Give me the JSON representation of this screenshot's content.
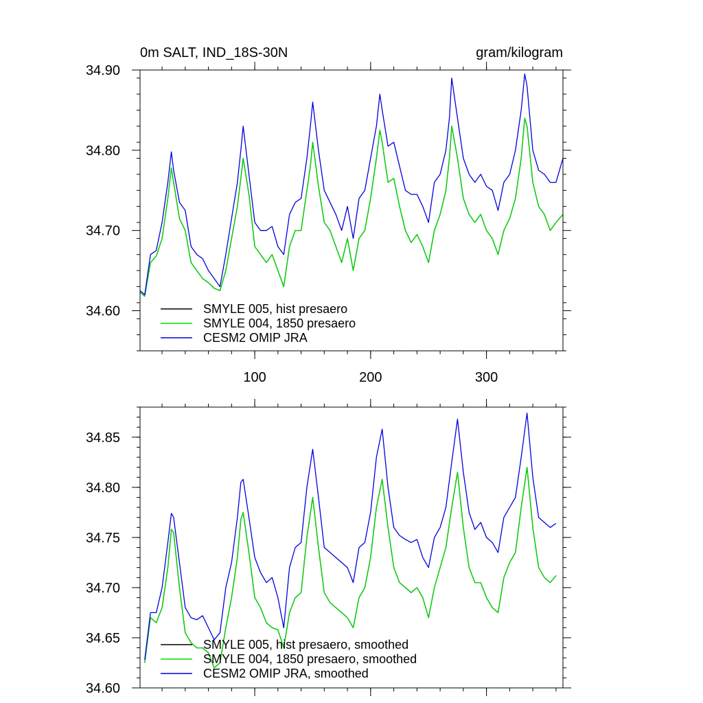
{
  "chart_data": [
    {
      "type": "line",
      "title_left": "0m SALT, IND_18S-30N",
      "title_right": "gram/kilogram",
      "xlabel": "",
      "ylabel": "",
      "xlim": [
        1,
        366
      ],
      "ylim": [
        34.55,
        34.9
      ],
      "x_ticks": [
        100,
        200,
        300
      ],
      "x_tick_labels": [
        "100",
        "200",
        "300"
      ],
      "y_ticks": [
        34.6,
        34.7,
        34.8,
        34.9
      ],
      "y_tick_labels": [
        "34.60",
        "34.70",
        "34.80",
        "34.90"
      ],
      "grid": false,
      "legend_position": "bottom-left",
      "series": [
        {
          "name": "SMYLE 005, hist presaero",
          "color": "#000000",
          "x": [
            1,
            5,
            10,
            15,
            20,
            25,
            28,
            30,
            35,
            40,
            45,
            50,
            55,
            60,
            65,
            70,
            75,
            80,
            85,
            88,
            90,
            95,
            100,
            105,
            110,
            115,
            120,
            125,
            130,
            135,
            140,
            145,
            148,
            150,
            155,
            160,
            165,
            170,
            175,
            180,
            185,
            190,
            195,
            200,
            205,
            208,
            210,
            215,
            220,
            225,
            230,
            235,
            240,
            245,
            250,
            255,
            260,
            265,
            268,
            270,
            275,
            280,
            285,
            290,
            295,
            300,
            305,
            310,
            315,
            320,
            325,
            330,
            333,
            335,
            340,
            345,
            350,
            355,
            360,
            366
          ],
          "values": [
            34.623,
            34.618,
            34.66,
            34.668,
            34.69,
            34.74,
            34.778,
            34.76,
            34.715,
            34.7,
            34.66,
            34.65,
            34.64,
            34.635,
            34.628,
            34.625,
            34.65,
            34.69,
            34.73,
            34.765,
            34.79,
            34.745,
            34.68,
            34.67,
            34.66,
            34.67,
            34.65,
            34.63,
            34.68,
            34.7,
            34.7,
            34.75,
            34.78,
            34.81,
            34.755,
            34.71,
            34.7,
            34.68,
            34.66,
            34.69,
            34.65,
            34.69,
            34.7,
            34.74,
            34.79,
            34.825,
            34.81,
            34.76,
            34.765,
            34.73,
            34.7,
            34.685,
            34.695,
            34.68,
            34.66,
            34.7,
            34.72,
            34.75,
            34.79,
            34.83,
            34.79,
            34.74,
            34.72,
            34.71,
            34.72,
            34.7,
            34.69,
            34.67,
            34.7,
            34.715,
            34.74,
            34.79,
            34.84,
            34.83,
            34.76,
            34.73,
            34.72,
            34.7,
            34.71,
            34.72
          ]
        },
        {
          "name": "SMYLE 004, 1850 presaero",
          "color": "#00dd00",
          "x": [
            1,
            5,
            10,
            15,
            20,
            25,
            28,
            30,
            35,
            40,
            45,
            50,
            55,
            60,
            65,
            70,
            75,
            80,
            85,
            88,
            90,
            95,
            100,
            105,
            110,
            115,
            120,
            125,
            130,
            135,
            140,
            145,
            148,
            150,
            155,
            160,
            165,
            170,
            175,
            180,
            185,
            190,
            195,
            200,
            205,
            208,
            210,
            215,
            220,
            225,
            230,
            235,
            240,
            245,
            250,
            255,
            260,
            265,
            268,
            270,
            275,
            280,
            285,
            290,
            295,
            300,
            305,
            310,
            315,
            320,
            325,
            330,
            333,
            335,
            340,
            345,
            350,
            355,
            360,
            366
          ],
          "values": [
            34.623,
            34.618,
            34.66,
            34.668,
            34.69,
            34.74,
            34.778,
            34.76,
            34.715,
            34.7,
            34.66,
            34.65,
            34.64,
            34.635,
            34.628,
            34.625,
            34.65,
            34.69,
            34.73,
            34.765,
            34.79,
            34.745,
            34.68,
            34.67,
            34.66,
            34.67,
            34.65,
            34.63,
            34.68,
            34.7,
            34.7,
            34.75,
            34.78,
            34.81,
            34.755,
            34.71,
            34.7,
            34.68,
            34.66,
            34.69,
            34.65,
            34.69,
            34.7,
            34.74,
            34.79,
            34.825,
            34.81,
            34.76,
            34.765,
            34.73,
            34.7,
            34.685,
            34.695,
            34.68,
            34.66,
            34.7,
            34.72,
            34.75,
            34.79,
            34.83,
            34.79,
            34.74,
            34.72,
            34.71,
            34.72,
            34.7,
            34.69,
            34.67,
            34.7,
            34.715,
            34.74,
            34.79,
            34.84,
            34.83,
            34.76,
            34.73,
            34.72,
            34.7,
            34.71,
            34.72
          ]
        },
        {
          "name": "CESM2 OMIP JRA",
          "color": "#0000dd",
          "x": [
            1,
            5,
            10,
            15,
            20,
            25,
            28,
            30,
            35,
            40,
            45,
            50,
            55,
            60,
            65,
            70,
            75,
            80,
            85,
            88,
            90,
            95,
            100,
            105,
            110,
            115,
            120,
            125,
            130,
            135,
            140,
            145,
            148,
            150,
            155,
            160,
            165,
            170,
            175,
            180,
            185,
            190,
            195,
            200,
            205,
            208,
            210,
            215,
            220,
            225,
            230,
            235,
            240,
            245,
            250,
            255,
            260,
            265,
            268,
            270,
            275,
            280,
            285,
            290,
            295,
            300,
            305,
            310,
            315,
            320,
            325,
            330,
            333,
            335,
            340,
            345,
            350,
            355,
            360,
            366
          ],
          "values": [
            34.625,
            34.62,
            34.67,
            34.675,
            34.71,
            34.76,
            34.798,
            34.775,
            34.735,
            34.725,
            34.68,
            34.67,
            34.665,
            34.65,
            34.64,
            34.63,
            34.67,
            34.715,
            34.76,
            34.8,
            34.83,
            34.77,
            34.71,
            34.7,
            34.7,
            34.705,
            34.68,
            34.67,
            34.72,
            34.735,
            34.74,
            34.79,
            34.83,
            34.86,
            34.8,
            34.75,
            34.735,
            34.72,
            34.7,
            34.73,
            34.69,
            34.74,
            34.75,
            34.79,
            34.83,
            34.87,
            34.85,
            34.805,
            34.81,
            34.78,
            34.75,
            34.745,
            34.745,
            34.73,
            34.71,
            34.76,
            34.77,
            34.8,
            34.84,
            34.89,
            34.84,
            34.79,
            34.77,
            34.76,
            34.77,
            34.755,
            34.75,
            34.725,
            34.76,
            34.77,
            34.8,
            34.85,
            34.895,
            34.88,
            34.8,
            34.775,
            34.77,
            34.76,
            34.76,
            34.79
          ]
        }
      ]
    },
    {
      "type": "line",
      "title_left": "",
      "title_right": "",
      "xlabel": "",
      "ylabel": "",
      "xlim": [
        1,
        366
      ],
      "ylim": [
        34.6,
        34.88
      ],
      "x_ticks": [
        100,
        200,
        300
      ],
      "x_tick_labels": [
        "",
        "",
        ""
      ],
      "y_ticks": [
        34.6,
        34.65,
        34.7,
        34.75,
        34.8,
        34.85
      ],
      "y_tick_labels": [
        "34.60",
        "34.65",
        "34.70",
        "34.75",
        "34.80",
        "34.85"
      ],
      "grid": false,
      "legend_position": "bottom-left",
      "series": [
        {
          "name": "SMYLE 005, hist presaero, smoothed",
          "color": "#000000",
          "x": [
            5,
            10,
            15,
            20,
            25,
            28,
            30,
            35,
            40,
            45,
            50,
            55,
            60,
            65,
            70,
            75,
            80,
            85,
            88,
            90,
            95,
            100,
            105,
            110,
            115,
            120,
            125,
            130,
            135,
            140,
            145,
            150,
            155,
            160,
            165,
            170,
            175,
            180,
            185,
            190,
            195,
            200,
            205,
            210,
            215,
            220,
            225,
            230,
            235,
            240,
            245,
            250,
            255,
            260,
            265,
            270,
            275,
            280,
            285,
            290,
            295,
            300,
            305,
            310,
            315,
            320,
            325,
            330,
            335,
            340,
            345,
            350,
            355,
            360
          ],
          "values": [
            34.625,
            34.67,
            34.665,
            34.68,
            34.72,
            34.758,
            34.755,
            34.7,
            34.655,
            34.645,
            34.64,
            34.64,
            34.635,
            34.62,
            34.625,
            34.66,
            34.69,
            34.73,
            34.768,
            34.775,
            34.735,
            34.69,
            34.68,
            34.665,
            34.66,
            34.658,
            34.64,
            34.675,
            34.69,
            34.695,
            34.75,
            34.79,
            34.74,
            34.695,
            34.685,
            34.68,
            34.675,
            34.67,
            34.66,
            34.69,
            34.7,
            34.73,
            34.78,
            34.808,
            34.76,
            34.72,
            34.705,
            34.7,
            34.695,
            34.7,
            34.69,
            34.67,
            34.7,
            34.72,
            34.74,
            34.78,
            34.815,
            34.76,
            34.72,
            34.705,
            34.705,
            34.69,
            34.68,
            34.675,
            34.71,
            34.725,
            34.735,
            34.78,
            34.82,
            34.76,
            34.72,
            34.71,
            34.705,
            34.712
          ]
        },
        {
          "name": "SMYLE 004, 1850 presaero, smoothed",
          "color": "#00dd00",
          "x": [
            5,
            10,
            15,
            20,
            25,
            28,
            30,
            35,
            40,
            45,
            50,
            55,
            60,
            65,
            70,
            75,
            80,
            85,
            88,
            90,
            95,
            100,
            105,
            110,
            115,
            120,
            125,
            130,
            135,
            140,
            145,
            150,
            155,
            160,
            165,
            170,
            175,
            180,
            185,
            190,
            195,
            200,
            205,
            210,
            215,
            220,
            225,
            230,
            235,
            240,
            245,
            250,
            255,
            260,
            265,
            270,
            275,
            280,
            285,
            290,
            295,
            300,
            305,
            310,
            315,
            320,
            325,
            330,
            335,
            340,
            345,
            350,
            355,
            360
          ],
          "values": [
            34.625,
            34.67,
            34.665,
            34.68,
            34.72,
            34.758,
            34.755,
            34.7,
            34.655,
            34.645,
            34.64,
            34.64,
            34.635,
            34.62,
            34.625,
            34.66,
            34.69,
            34.73,
            34.768,
            34.775,
            34.735,
            34.69,
            34.68,
            34.665,
            34.66,
            34.658,
            34.64,
            34.675,
            34.69,
            34.695,
            34.75,
            34.79,
            34.74,
            34.695,
            34.685,
            34.68,
            34.675,
            34.67,
            34.66,
            34.69,
            34.7,
            34.73,
            34.78,
            34.808,
            34.76,
            34.72,
            34.705,
            34.7,
            34.695,
            34.7,
            34.69,
            34.67,
            34.7,
            34.72,
            34.74,
            34.78,
            34.815,
            34.76,
            34.72,
            34.705,
            34.705,
            34.69,
            34.68,
            34.675,
            34.71,
            34.725,
            34.735,
            34.78,
            34.82,
            34.76,
            34.72,
            34.71,
            34.705,
            34.712
          ]
        },
        {
          "name": "CESM2 OMIP JRA, smoothed",
          "color": "#0000dd",
          "x": [
            5,
            10,
            15,
            20,
            25,
            28,
            30,
            35,
            40,
            45,
            50,
            55,
            60,
            65,
            70,
            75,
            80,
            85,
            88,
            90,
            95,
            100,
            105,
            110,
            115,
            120,
            125,
            130,
            135,
            140,
            145,
            150,
            155,
            160,
            165,
            170,
            175,
            180,
            185,
            190,
            195,
            200,
            205,
            210,
            215,
            220,
            225,
            230,
            235,
            240,
            245,
            250,
            255,
            260,
            265,
            270,
            275,
            280,
            285,
            290,
            295,
            300,
            305,
            310,
            315,
            320,
            325,
            330,
            335,
            340,
            345,
            350,
            355,
            360
          ],
          "values": [
            34.628,
            34.675,
            34.675,
            34.7,
            34.745,
            34.774,
            34.77,
            34.725,
            34.68,
            34.67,
            34.668,
            34.672,
            34.66,
            34.648,
            34.655,
            34.7,
            34.725,
            34.77,
            34.805,
            34.808,
            34.77,
            34.73,
            34.715,
            34.705,
            34.71,
            34.69,
            34.66,
            34.72,
            34.74,
            34.745,
            34.8,
            34.838,
            34.79,
            34.74,
            34.735,
            34.73,
            34.725,
            34.72,
            34.705,
            34.74,
            34.745,
            34.775,
            34.83,
            34.858,
            34.8,
            34.76,
            34.752,
            34.748,
            34.745,
            34.748,
            34.73,
            34.72,
            34.75,
            34.76,
            34.78,
            34.825,
            34.868,
            34.815,
            34.775,
            34.758,
            34.765,
            34.75,
            34.745,
            34.735,
            34.77,
            34.78,
            34.79,
            34.83,
            34.874,
            34.81,
            34.77,
            34.765,
            34.76,
            34.764
          ]
        }
      ]
    }
  ]
}
